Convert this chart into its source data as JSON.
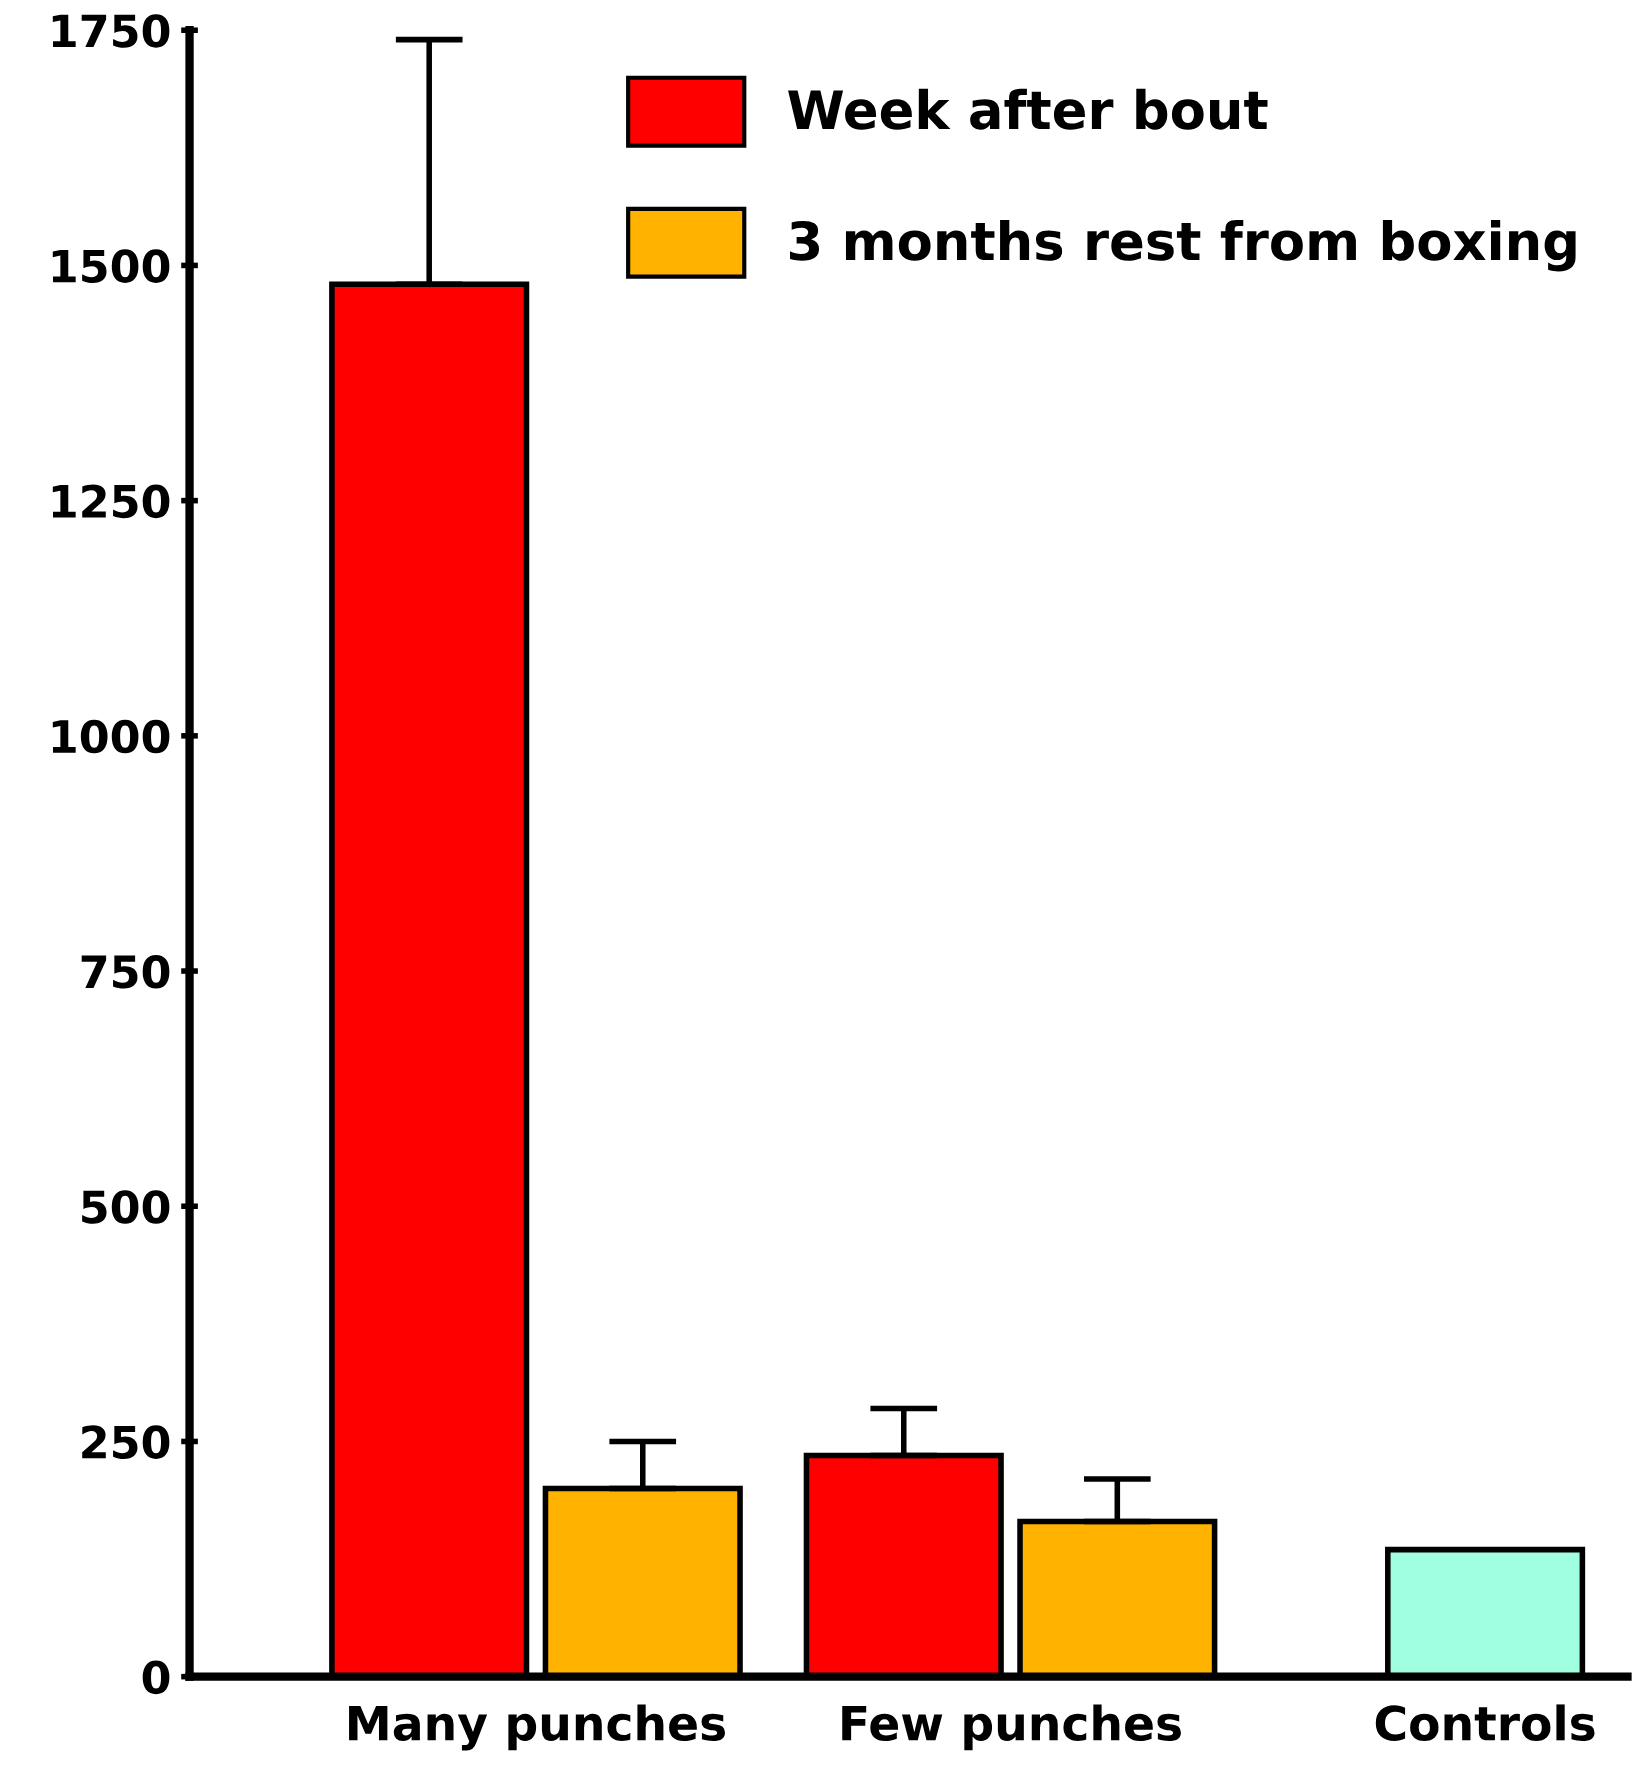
{
  "chart_data": {
    "type": "bar",
    "categories": [
      "Many punches",
      "Few punches",
      "Controls"
    ],
    "series": [
      {
        "name": "Week after bout",
        "color": "#ff0000",
        "values": [
          1480,
          235,
          null
        ],
        "errors": [
          [
            1480,
            1740
          ],
          [
            235,
            285
          ],
          null
        ]
      },
      {
        "name": "3 months rest from boxing",
        "color": "#ffb300",
        "values": [
          200,
          165,
          null
        ],
        "errors": [
          [
            200,
            250
          ],
          [
            165,
            210
          ],
          null
        ]
      },
      {
        "color": "#a0ffe0",
        "values": [
          null,
          null,
          135
        ]
      }
    ],
    "ylim": [
      0,
      1750
    ],
    "yticks": [
      0,
      250,
      500,
      750,
      1000,
      1250,
      1500,
      1750
    ],
    "grid": false,
    "legend": "top right"
  }
}
